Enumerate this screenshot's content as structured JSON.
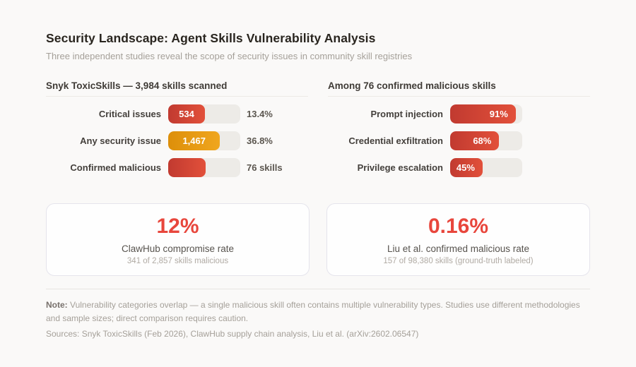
{
  "header": {
    "title": "Security Landscape: Agent Skills Vulnerability Analysis",
    "subtitle": "Three independent studies reveal the scope of security issues in community skill registries"
  },
  "panels": [
    {
      "heading": "Snyk ToxicSkills — 3,984 skills scanned",
      "rows": [
        {
          "label": "Critical issues",
          "bar_label": "534",
          "value_text": "13.4%",
          "fill_pct": 51,
          "color": "c-red"
        },
        {
          "label": "Any security issue",
          "bar_label": "1,467",
          "value_text": "36.8%",
          "fill_pct": 72,
          "color": "c-orange"
        },
        {
          "label": "Confirmed malicious",
          "bar_label": "",
          "value_text": "76 skills",
          "fill_pct": 52,
          "color": "c-red"
        }
      ]
    },
    {
      "heading": "Among 76 confirmed malicious skills",
      "rows": [
        {
          "label": "Prompt injection",
          "bar_label": "91%",
          "fill_pct": 91,
          "color": "c-red"
        },
        {
          "label": "Credential exfiltration",
          "bar_label": "68%",
          "fill_pct": 68,
          "color": "c-red"
        },
        {
          "label": "Privilege escalation",
          "bar_label": "45%",
          "fill_pct": 45,
          "color": "c-red"
        }
      ]
    }
  ],
  "cards": [
    {
      "stat": "12%",
      "label": "ClawHub compromise rate",
      "sub": "341 of 2,857 skills malicious"
    },
    {
      "stat": "0.16%",
      "label": "Liu et al. confirmed malicious rate",
      "sub": "157 of 98,380 skills (ground-truth labeled)"
    }
  ],
  "footer": {
    "note_label": "Note:",
    "note_text": " Vulnerability categories overlap — a single malicious skill often contains multiple vulnerability types. Studies use different methodologies and sample sizes; direct comparison requires caution.",
    "sources": "Sources: Snyk ToxicSkills (Feb 2026), ClawHub supply chain analysis, Liu et al. (arXiv:2602.06547)"
  },
  "colors": {
    "background": "#faf9f8",
    "bar_red_start": "#c13a30",
    "bar_red_end": "#e2503a",
    "bar_orange_start": "#dd8f0a",
    "bar_orange_end": "#f0a61e",
    "bar_track": "#edebe7",
    "stat_red": "#e8463c"
  },
  "chart_data": [
    {
      "type": "bar",
      "orientation": "horizontal",
      "title": "Snyk ToxicSkills — 3,984 skills scanned",
      "categories": [
        "Critical issues",
        "Any security issue",
        "Confirmed malicious"
      ],
      "values": [
        534,
        1467,
        76
      ],
      "value_labels": [
        "13.4%",
        "36.8%",
        "76 skills"
      ],
      "total_sample": 3984,
      "bar_colors": [
        "red",
        "orange",
        "red"
      ]
    },
    {
      "type": "bar",
      "orientation": "horizontal",
      "title": "Among 76 confirmed malicious skills",
      "categories": [
        "Prompt injection",
        "Credential exfiltration",
        "Privilege escalation"
      ],
      "values": [
        91,
        68,
        45
      ],
      "unit": "percent",
      "xlim": [
        0,
        100
      ],
      "bar_colors": [
        "red",
        "red",
        "red"
      ]
    },
    {
      "type": "table",
      "title": "Headline stats",
      "rows": [
        {
          "stat": "12%",
          "label": "ClawHub compromise rate",
          "detail": "341 of 2,857 skills malicious"
        },
        {
          "stat": "0.16%",
          "label": "Liu et al. confirmed malicious rate",
          "detail": "157 of 98,380 skills (ground-truth labeled)"
        }
      ]
    }
  ]
}
